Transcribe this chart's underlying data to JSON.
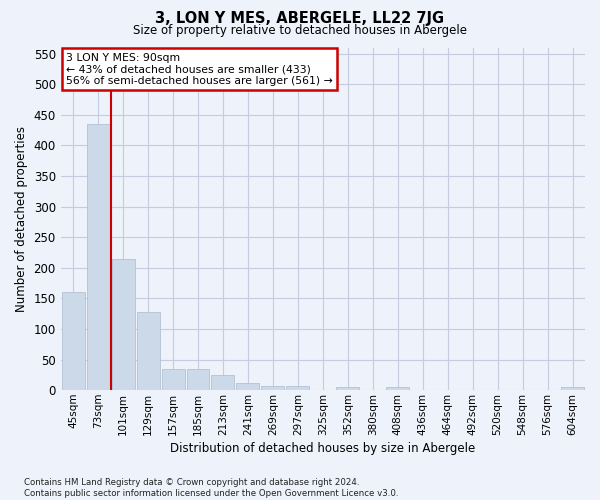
{
  "title": "3, LON Y MES, ABERGELE, LL22 7JG",
  "subtitle": "Size of property relative to detached houses in Abergele",
  "xlabel": "Distribution of detached houses by size in Abergele",
  "ylabel": "Number of detached properties",
  "categories": [
    "45sqm",
    "73sqm",
    "101sqm",
    "129sqm",
    "157sqm",
    "185sqm",
    "213sqm",
    "241sqm",
    "269sqm",
    "297sqm",
    "325sqm",
    "352sqm",
    "380sqm",
    "408sqm",
    "436sqm",
    "464sqm",
    "492sqm",
    "520sqm",
    "548sqm",
    "576sqm",
    "604sqm"
  ],
  "values": [
    160,
    435,
    215,
    128,
    35,
    35,
    25,
    12,
    7,
    6,
    0,
    5,
    0,
    5,
    0,
    0,
    0,
    0,
    0,
    0,
    5
  ],
  "bar_color": "#ccd9e8",
  "bar_edge_color": "#aabbd0",
  "vline_color": "#cc0000",
  "annotation_text": "3 LON Y MES: 90sqm\n← 43% of detached houses are smaller (433)\n56% of semi-detached houses are larger (561) →",
  "annotation_box_color": "#ffffff",
  "annotation_box_edge": "#cc0000",
  "ylim": [
    0,
    560
  ],
  "yticks": [
    0,
    50,
    100,
    150,
    200,
    250,
    300,
    350,
    400,
    450,
    500,
    550
  ],
  "bg_color": "#eef2fa",
  "grid_color": "#c5cce0",
  "footer": "Contains HM Land Registry data © Crown copyright and database right 2024.\nContains public sector information licensed under the Open Government Licence v3.0."
}
